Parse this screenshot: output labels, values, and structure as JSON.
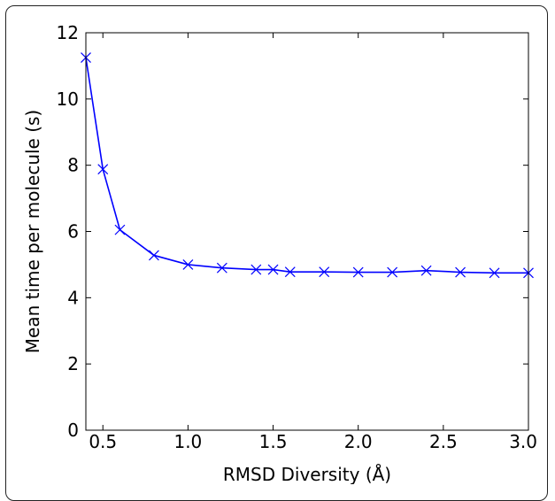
{
  "chart_data": {
    "type": "line",
    "title": "",
    "xlabel": "RMSD Diversity (Å)",
    "ylabel": "Mean time per molecule (s)",
    "xlim": [
      0.4,
      3.0
    ],
    "ylim": [
      0,
      12
    ],
    "x_ticks": [
      "0.5",
      "1.0",
      "1.5",
      "2.0",
      "2.5",
      "3.0"
    ],
    "y_ticks": [
      "0",
      "2",
      "4",
      "6",
      "8",
      "10",
      "12"
    ],
    "grid": false,
    "legend": "none",
    "series": [
      {
        "color": "#0000ff",
        "marker": "x",
        "x": [
          0.4,
          0.5,
          0.6,
          0.8,
          1.0,
          1.2,
          1.4,
          1.5,
          1.6,
          1.8,
          2.0,
          2.2,
          2.4,
          2.6,
          2.8,
          3.0
        ],
        "y": [
          11.25,
          7.88,
          6.05,
          5.28,
          5.0,
          4.9,
          4.85,
          4.85,
          4.78,
          4.78,
          4.77,
          4.77,
          4.82,
          4.77,
          4.75,
          4.75
        ]
      }
    ]
  }
}
